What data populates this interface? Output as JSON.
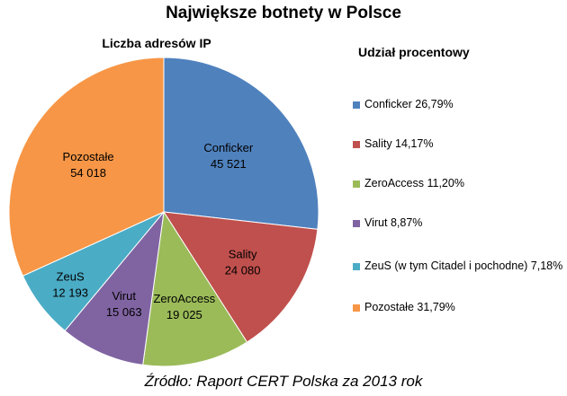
{
  "title": "Największe botnety w Polsce",
  "chart_label": "Liczba adresów IP",
  "legend_title": "Udział procentowy",
  "source": "Źródło: Raport CERT Polska za 2013 rok",
  "chart_data": {
    "type": "pie",
    "title": "Największe botnety w Polsce",
    "subtitle": "Liczba adresów IP",
    "legend_title": "Udział procentowy",
    "slices": [
      {
        "name": "Conficker",
        "value": 45521,
        "value_label": "45 521",
        "legend": "Conficker  26,79%",
        "color": "#4f81bd"
      },
      {
        "name": "Sality",
        "value": 24080,
        "value_label": "24 080",
        "legend": "Sality 14,17%",
        "color": "#c0504d"
      },
      {
        "name": "ZeroAccess",
        "value": 19025,
        "value_label": "19 025",
        "legend": "ZeroAccess 11,20%",
        "color": "#9bbb59"
      },
      {
        "name": "Virut",
        "value": 15063,
        "value_label": "15 063",
        "legend": "Virut 8,87%",
        "color": "#8064a2"
      },
      {
        "name": "ZeuS",
        "value": 12193,
        "value_label": "12 193",
        "legend": "ZeuS (w tym Citadel i pochodne) 7,18%",
        "color": "#4bacc6"
      },
      {
        "name": "Pozostałe",
        "value": 54018,
        "value_label": "54 018",
        "legend": "Pozostałe 31,79%",
        "color": "#f79646"
      }
    ],
    "legend_placement": "right"
  }
}
